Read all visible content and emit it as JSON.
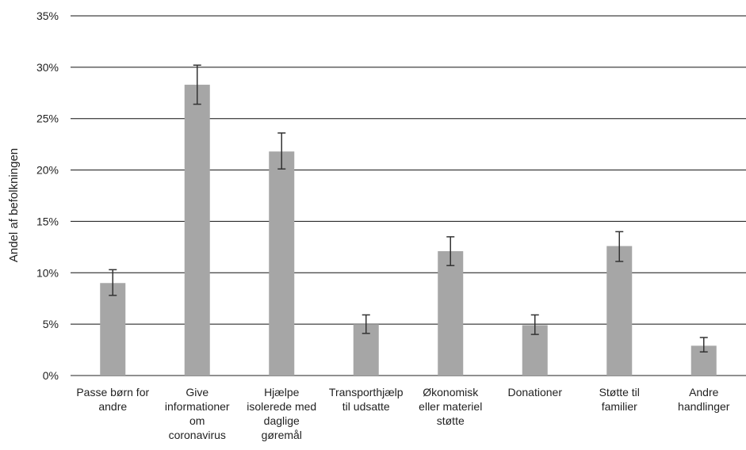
{
  "chart_data": {
    "type": "bar",
    "title": "",
    "xlabel": "",
    "ylabel": "Andel af befolkningen",
    "ylim": [
      0,
      35
    ],
    "yticks": [
      "0%",
      "5%",
      "10%",
      "15%",
      "20%",
      "25%",
      "30%",
      "35%"
    ],
    "grid": true,
    "bar_color": "#a6a6a6",
    "categories": [
      [
        "Passe børn for",
        "andre"
      ],
      [
        "Give",
        "informationer",
        "om",
        "coronavirus"
      ],
      [
        "Hjælpe",
        "isolerede med",
        "daglige",
        "gøremål"
      ],
      [
        "Transporthjælp",
        "til udsatte"
      ],
      [
        "Økonomisk",
        "eller materiel",
        "støtte"
      ],
      [
        "Donationer"
      ],
      [
        "Støtte til",
        "familier"
      ],
      [
        "Andre",
        "handlinger"
      ]
    ],
    "values": [
      9.0,
      28.3,
      21.8,
      5.0,
      12.1,
      4.9,
      12.6,
      2.9
    ],
    "error_low": [
      7.8,
      26.4,
      20.1,
      4.1,
      10.7,
      4.0,
      11.1,
      2.3
    ],
    "error_high": [
      10.3,
      30.2,
      23.6,
      5.9,
      13.5,
      5.9,
      14.0,
      3.7
    ]
  }
}
